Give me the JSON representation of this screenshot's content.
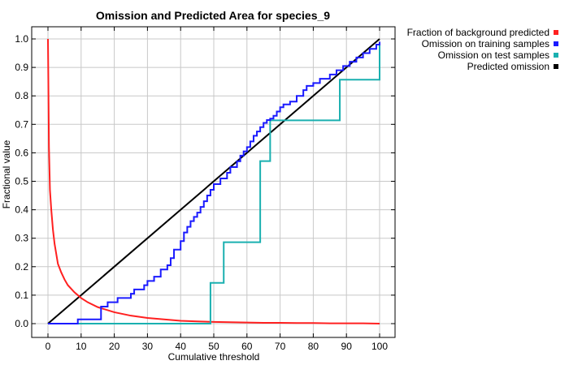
{
  "chart_data": {
    "type": "line",
    "title": "Omission and Predicted Area for species_9",
    "xlabel": "Cumulative threshold",
    "ylabel": "Fractional value",
    "xlim": [
      0,
      100
    ],
    "ylim": [
      0,
      1
    ],
    "x_ticks": [
      "0",
      "10",
      "20",
      "30",
      "40",
      "50",
      "60",
      "70",
      "80",
      "90",
      "100"
    ],
    "y_ticks": [
      "0.0",
      "0.1",
      "0.2",
      "0.3",
      "0.4",
      "0.5",
      "0.6",
      "0.7",
      "0.8",
      "0.9",
      "1.0"
    ],
    "grid": true,
    "legend_position": "outside-right",
    "series": [
      {
        "name": "Fraction of background predicted",
        "color": "#ff2020",
        "style": "line",
        "x": [
          0,
          0.3,
          0.6,
          1,
          1.5,
          2,
          3,
          4,
          5,
          6,
          8,
          10,
          12,
          15,
          20,
          25,
          30,
          35,
          40,
          45,
          50,
          55,
          60,
          65,
          70,
          75,
          80,
          85,
          90,
          95,
          100
        ],
        "y": [
          1.0,
          0.62,
          0.47,
          0.4,
          0.33,
          0.28,
          0.21,
          0.18,
          0.155,
          0.135,
          0.11,
          0.09,
          0.075,
          0.058,
          0.04,
          0.028,
          0.02,
          0.015,
          0.01,
          0.008,
          0.006,
          0.005,
          0.004,
          0.003,
          0.003,
          0.002,
          0.002,
          0.001,
          0.001,
          0.001,
          0.0
        ]
      },
      {
        "name": "Omission on training samples",
        "color": "#1a1aff",
        "style": "step",
        "x": [
          0,
          9,
          16,
          18,
          21,
          25,
          26,
          29,
          30,
          32,
          34,
          36,
          37,
          38,
          40,
          41,
          42,
          43,
          44,
          45,
          46,
          47,
          48,
          49,
          50,
          52,
          54,
          55,
          57,
          58,
          59,
          60,
          61,
          62,
          63,
          64,
          65,
          66,
          67,
          68,
          69,
          70,
          71,
          73,
          75,
          77,
          78,
          80,
          82,
          85,
          87,
          89,
          91,
          93,
          95,
          97,
          99,
          100
        ],
        "y": [
          0.0,
          0.015,
          0.06,
          0.075,
          0.09,
          0.105,
          0.12,
          0.135,
          0.15,
          0.165,
          0.19,
          0.205,
          0.23,
          0.26,
          0.29,
          0.32,
          0.34,
          0.36,
          0.375,
          0.39,
          0.41,
          0.43,
          0.45,
          0.47,
          0.49,
          0.51,
          0.53,
          0.55,
          0.57,
          0.59,
          0.605,
          0.62,
          0.64,
          0.66,
          0.675,
          0.69,
          0.705,
          0.715,
          0.72,
          0.73,
          0.745,
          0.76,
          0.77,
          0.78,
          0.8,
          0.82,
          0.835,
          0.845,
          0.86,
          0.875,
          0.89,
          0.905,
          0.92,
          0.935,
          0.95,
          0.965,
          0.98,
          0.99
        ]
      },
      {
        "name": "Omission on test samples",
        "color": "#1ab0b0",
        "style": "step",
        "x": [
          0,
          49,
          53,
          64,
          66,
          67,
          87,
          88,
          100
        ],
        "y": [
          0.0,
          0.143,
          0.286,
          0.571,
          0.571,
          0.714,
          0.714,
          0.857,
          0.98
        ]
      },
      {
        "name": "Predicted omission",
        "color": "#000000",
        "style": "line",
        "x": [
          0,
          100
        ],
        "y": [
          0.0,
          1.0
        ]
      }
    ]
  }
}
